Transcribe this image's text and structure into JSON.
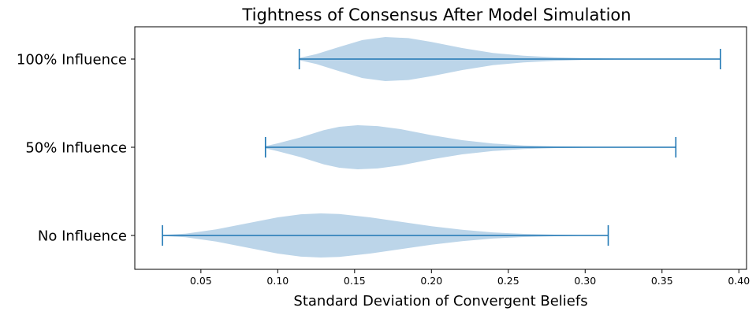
{
  "chart_data": {
    "type": "violin",
    "orientation": "horizontal",
    "title": "Tightness of Consensus After Model Simulation",
    "xlabel": "Standard Deviation of Convergent Beliefs",
    "ylabel": "",
    "xlim": [
      0.007,
      0.405
    ],
    "x_ticks": [
      "0.05",
      "0.10",
      "0.15",
      "0.20",
      "0.25",
      "0.30",
      "0.35",
      "0.40"
    ],
    "grid": false,
    "colors": {
      "body": "#bcd5e9",
      "line": "#1f77b4"
    },
    "series": [
      {
        "name": "No Influence",
        "min": 0.025,
        "max": 0.315,
        "mode": 0.128,
        "profile": [
          [
            0.025,
            0.02
          ],
          [
            0.04,
            0.08
          ],
          [
            0.06,
            0.28
          ],
          [
            0.08,
            0.55
          ],
          [
            0.1,
            0.82
          ],
          [
            0.115,
            0.96
          ],
          [
            0.128,
            1.0
          ],
          [
            0.14,
            0.97
          ],
          [
            0.16,
            0.82
          ],
          [
            0.18,
            0.62
          ],
          [
            0.2,
            0.42
          ],
          [
            0.22,
            0.26
          ],
          [
            0.24,
            0.14
          ],
          [
            0.26,
            0.07
          ],
          [
            0.28,
            0.035
          ],
          [
            0.3,
            0.015
          ],
          [
            0.315,
            0.005
          ]
        ]
      },
      {
        "name": "50% Influence",
        "min": 0.092,
        "max": 0.359,
        "mode": 0.152,
        "profile": [
          [
            0.092,
            0.05
          ],
          [
            0.1,
            0.18
          ],
          [
            0.115,
            0.45
          ],
          [
            0.13,
            0.78
          ],
          [
            0.14,
            0.93
          ],
          [
            0.152,
            1.0
          ],
          [
            0.165,
            0.96
          ],
          [
            0.18,
            0.82
          ],
          [
            0.2,
            0.55
          ],
          [
            0.22,
            0.32
          ],
          [
            0.24,
            0.17
          ],
          [
            0.26,
            0.08
          ],
          [
            0.28,
            0.04
          ],
          [
            0.3,
            0.02
          ],
          [
            0.33,
            0.01
          ],
          [
            0.359,
            0.005
          ]
        ]
      },
      {
        "name": "100% Influence",
        "min": 0.114,
        "max": 0.388,
        "mode": 0.17,
        "profile": [
          [
            0.114,
            0.05
          ],
          [
            0.125,
            0.22
          ],
          [
            0.14,
            0.55
          ],
          [
            0.155,
            0.86
          ],
          [
            0.17,
            1.0
          ],
          [
            0.185,
            0.95
          ],
          [
            0.2,
            0.78
          ],
          [
            0.22,
            0.5
          ],
          [
            0.24,
            0.28
          ],
          [
            0.26,
            0.15
          ],
          [
            0.28,
            0.08
          ],
          [
            0.3,
            0.04
          ],
          [
            0.32,
            0.02
          ],
          [
            0.35,
            0.01
          ],
          [
            0.388,
            0.005
          ]
        ]
      }
    ]
  }
}
